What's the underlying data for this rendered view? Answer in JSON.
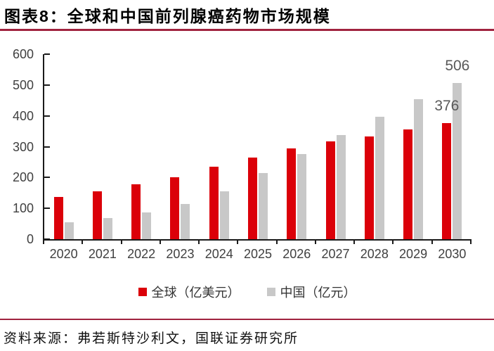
{
  "header": {
    "title": "图表8：全球和中国前列腺癌药物市场规模"
  },
  "chart_data": {
    "type": "bar",
    "title": "全球和中国前列腺癌药物市场规模",
    "categories": [
      "2020",
      "2021",
      "2022",
      "2023",
      "2024",
      "2025",
      "2026",
      "2027",
      "2028",
      "2029",
      "2030"
    ],
    "series": [
      {
        "name": "全球（亿美元）",
        "color": "#DB0009",
        "values": [
          136,
          155,
          177,
          201,
          234,
          265,
          295,
          317,
          333,
          355,
          376
        ]
      },
      {
        "name": "中国（亿元）",
        "color": "#C8C8C8",
        "values": [
          55,
          69,
          87,
          114,
          156,
          214,
          277,
          338,
          398,
          455,
          506
        ]
      }
    ],
    "point_labels": [
      {
        "series": 0,
        "category": "2030",
        "text": "376"
      },
      {
        "series": 1,
        "category": "2030",
        "text": "506"
      }
    ],
    "ylim": [
      0,
      600
    ],
    "y_ticks": [
      0,
      100,
      200,
      300,
      400,
      500,
      600
    ],
    "grid": false,
    "legend_position": "bottom",
    "colors": {
      "axis": "#1a1a1a",
      "tick_label": "#404040",
      "data_label": "#595959"
    }
  },
  "footer": {
    "source": "资料来源：弗若斯特沙利文，国联证券研究所"
  },
  "theme": {
    "rule_color": "#A0233F",
    "background": "#FFFFFF"
  }
}
